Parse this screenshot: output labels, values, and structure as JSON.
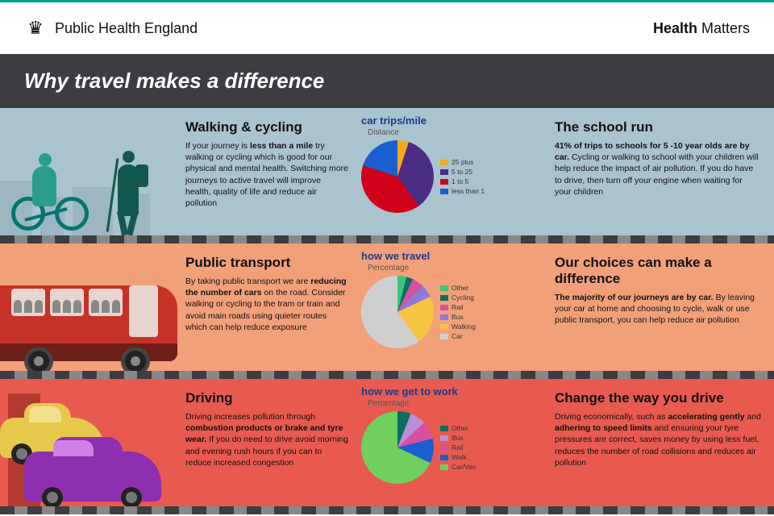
{
  "header": {
    "org": "Public Health England",
    "right_prefix": "Health",
    "right_bold": "Matters"
  },
  "title": "Why travel makes a difference",
  "sections": [
    {
      "bg": "#a9c3cf",
      "left": {
        "heading": "Walking & cycling",
        "body": "If your journey is <b>less than a mile</b> try walking or cycling which is good for our physical and mental health. Switching more journeys to active travel will improve health, quality of life and reduce air pollution"
      },
      "chart": {
        "title": "car trips/mile",
        "subtitle": "Distance",
        "type": "pie",
        "slices": [
          {
            "label": "25 plus",
            "value": 5,
            "color": "#f5a623"
          },
          {
            "label": "5 to 25",
            "value": 35,
            "color": "#4b2e83"
          },
          {
            "label": "1 to 5",
            "value": 40,
            "color": "#d0021b"
          },
          {
            "label": "less than 1",
            "value": 20,
            "color": "#1a5fd0"
          }
        ]
      },
      "right": {
        "heading": "The school run",
        "body": "<b>41% of trips to schools for 5 -10 year olds are by car.</b> Cycling or walking to school with your children will help reduce the impact of air pollution. If you do have to drive, then turn off your engine when waiting for your children"
      }
    },
    {
      "bg": "#f2a07a",
      "left": {
        "heading": "Public transport",
        "body": "By taking public transport we are <b>reducing the number of cars</b> on the road. Consider walking or cycling to the tram or train and avoid main roads using quieter routes which can help reduce exposure"
      },
      "chart": {
        "title": "how we travel",
        "subtitle": "Percentage",
        "type": "pie",
        "slices": [
          {
            "label": "Other",
            "value": 4,
            "color": "#3ac77a"
          },
          {
            "label": "Cycling",
            "value": 3,
            "color": "#0b6e5f"
          },
          {
            "label": "Rail",
            "value": 5,
            "color": "#d94fa0"
          },
          {
            "label": "Bus",
            "value": 6,
            "color": "#8a7bd8"
          },
          {
            "label": "Walking",
            "value": 22,
            "color": "#f5c542"
          },
          {
            "label": "Car",
            "value": 60,
            "color": "#cfcfcf"
          }
        ]
      },
      "right": {
        "heading": "Our choices can make a difference",
        "body": "<b>The majority of our journeys are by car.</b> By leaving your car at home and choosing to cycle, walk or use public transport, you can help reduce air pollution"
      }
    },
    {
      "bg": "#e85a4f",
      "left": {
        "heading": "Driving",
        "body": "Driving increases pollution through <b>combustion products or brake and tyre wear.</b> If you do need to drive avoid morning and evening rush hours if you can to reduce increased congestion"
      },
      "chart": {
        "title": "how we get to work",
        "subtitle": "Percentage",
        "type": "pie",
        "slices": [
          {
            "label": "Other",
            "value": 6,
            "color": "#0b6e5f"
          },
          {
            "label": "Bus",
            "value": 7,
            "color": "#b98fd8"
          },
          {
            "label": "Rail",
            "value": 8,
            "color": "#d94fa0"
          },
          {
            "label": "Walk",
            "value": 11,
            "color": "#1a5fd0"
          },
          {
            "label": "Car/Van",
            "value": 68,
            "color": "#6fcf5f"
          }
        ]
      },
      "right": {
        "heading": "Change the way you drive",
        "body": "Driving economically, such as <b>accelerating gently</b> and <b>adhering to speed limits</b> and ensuring your tyre pressures are correct, saves money by using less fuel, reduces the number of road collisions and reduces air pollution"
      }
    }
  ]
}
